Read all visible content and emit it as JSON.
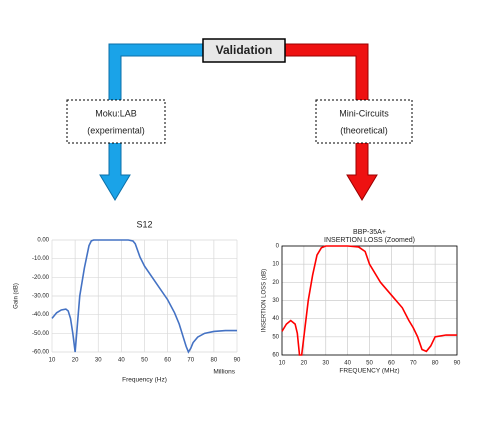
{
  "validation": "Validation",
  "left_box": {
    "line1": "Moku:LAB",
    "line2": "(experimental)"
  },
  "right_box": {
    "line1": "Mini-Circuits",
    "line2": "(theoretical)"
  },
  "chart_data": [
    {
      "type": "line",
      "title": "S12",
      "xlabel": "Frequency (Hz)",
      "x_unit_label": "Millions",
      "ylabel": "Gain (dB)",
      "x": [
        10,
        12,
        14,
        16,
        17,
        18,
        19,
        20,
        21,
        22,
        24,
        26,
        27,
        28,
        30,
        35,
        40,
        43,
        45,
        46,
        48,
        50,
        55,
        60,
        63,
        65,
        67,
        68,
        69,
        70,
        71,
        73,
        76,
        80,
        85,
        90
      ],
      "values": [
        -42,
        -39,
        -37.5,
        -37,
        -38,
        -42,
        -50,
        -60,
        -45,
        -30,
        -15,
        -3,
        -0.5,
        0,
        0,
        0,
        0,
        0,
        -0.5,
        -2,
        -9,
        -14,
        -23,
        -32,
        -39,
        -45,
        -53,
        -57,
        -60,
        -58,
        -55,
        -52,
        -50,
        -49,
        -48.5,
        -48.5
      ],
      "color": "#4472c4",
      "xlim": [
        10,
        90
      ],
      "xticks": [
        10,
        20,
        30,
        40,
        50,
        60,
        70,
        80,
        90
      ],
      "ylim": [
        -60,
        0
      ],
      "yticks": [
        {
          "value": 0,
          "label": "0.00"
        },
        {
          "value": -10,
          "label": "-10.00"
        },
        {
          "value": -20,
          "label": "-20.00"
        },
        {
          "value": -30,
          "label": "-30.00"
        },
        {
          "value": -40,
          "label": "-40.00"
        },
        {
          "value": -50,
          "label": "-50.00"
        },
        {
          "value": -60,
          "label": "-60.00"
        }
      ],
      "grid": true
    },
    {
      "type": "line",
      "title": "BBP-35A+",
      "subtitle": "INSERTION LOSS (Zoomed)",
      "xlabel": "FREQUENCY (MHz)",
      "ylabel": "INSERTION LOSS (dB)",
      "x": [
        10,
        12,
        14,
        16,
        17,
        18,
        19,
        20,
        22,
        24,
        26,
        28,
        30,
        35,
        40,
        45,
        48,
        50,
        55,
        60,
        65,
        68,
        70,
        72,
        74,
        76,
        78,
        80,
        85,
        90
      ],
      "values": [
        47,
        43,
        41,
        43,
        48,
        60,
        60,
        50,
        30,
        16,
        5,
        1,
        0,
        0,
        0,
        0.5,
        3,
        10,
        20,
        27,
        34,
        41,
        45,
        50,
        57,
        58,
        55,
        50,
        49,
        49
      ],
      "color": "#ff0000",
      "xlim": [
        10,
        90
      ],
      "xticks": [
        10,
        20,
        30,
        40,
        50,
        60,
        70,
        80,
        90
      ],
      "ylim": [
        60,
        0
      ],
      "yticks": [
        0,
        10,
        20,
        30,
        40,
        50,
        60
      ],
      "grid": true
    }
  ]
}
